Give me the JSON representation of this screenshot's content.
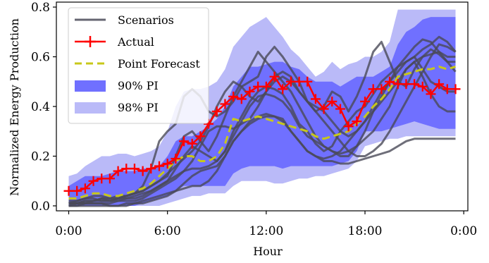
{
  "chart_data": {
    "type": "line",
    "xlabel": "Hour",
    "ylabel": "Normalized Energy Production",
    "x_tick_labels": [
      "0:00",
      "6:00",
      "12:00",
      "18:00",
      "0:00"
    ],
    "y_tick_labels": [
      "0.0",
      "0.2",
      "0.4",
      "0.6",
      "0.8"
    ],
    "xlim": [
      -0.75,
      24.25
    ],
    "ylim": [
      -0.02,
      0.82
    ],
    "y_ticks": [
      0.0,
      0.2,
      0.4,
      0.6,
      0.8
    ],
    "x_ticks": [
      0,
      6,
      12,
      18,
      24
    ],
    "grid": false,
    "legend_position": "upper-left",
    "x": [
      0,
      0.5,
      1,
      1.5,
      2,
      2.5,
      3,
      3.5,
      4,
      4.5,
      5,
      5.5,
      6,
      6.5,
      7,
      7.5,
      8,
      8.5,
      9,
      9.5,
      10,
      10.5,
      11,
      11.5,
      12,
      12.5,
      13,
      13.5,
      14,
      14.5,
      15,
      15.5,
      16,
      16.5,
      17,
      17.5,
      18,
      18.5,
      19,
      19.5,
      20,
      20.5,
      21,
      21.5,
      22,
      22.5,
      23,
      23.5
    ],
    "series": [
      {
        "name": "Actual",
        "color": "#ff0000",
        "values": [
          0.06,
          0.06,
          0.07,
          0.1,
          0.11,
          0.11,
          0.14,
          0.15,
          0.15,
          0.14,
          0.15,
          0.16,
          0.17,
          0.19,
          0.26,
          0.25,
          0.28,
          0.33,
          0.38,
          0.41,
          0.44,
          0.43,
          0.46,
          0.48,
          0.48,
          0.52,
          0.47,
          0.5,
          0.5,
          0.5,
          0.43,
          0.39,
          0.42,
          0.39,
          0.32,
          0.34,
          0.42,
          0.47,
          0.47,
          0.5,
          0.49,
          0.49,
          0.49,
          0.48,
          0.45,
          0.49,
          0.47,
          0.47
        ]
      },
      {
        "name": "Point Forecast",
        "color": "#c8c81a",
        "values": [
          0.03,
          0.03,
          0.04,
          0.05,
          0.05,
          0.04,
          0.04,
          0.05,
          0.06,
          0.07,
          0.09,
          0.12,
          0.15,
          0.18,
          0.2,
          0.2,
          0.18,
          0.18,
          0.2,
          0.25,
          0.35,
          0.34,
          0.35,
          0.36,
          0.35,
          0.34,
          0.33,
          0.32,
          0.31,
          0.3,
          0.28,
          0.27,
          0.28,
          0.29,
          0.3,
          0.33,
          0.36,
          0.4,
          0.43,
          0.47,
          0.52,
          0.53,
          0.54,
          0.55,
          0.55,
          0.56,
          0.55,
          0.56
        ]
      },
      {
        "name": "90% PI",
        "color": "#7070ff",
        "upper": [
          0.08,
          0.1,
          0.12,
          0.12,
          0.12,
          0.13,
          0.14,
          0.14,
          0.14,
          0.15,
          0.15,
          0.16,
          0.2,
          0.26,
          0.28,
          0.28,
          0.3,
          0.32,
          0.35,
          0.4,
          0.48,
          0.52,
          0.56,
          0.56,
          0.57,
          0.58,
          0.58,
          0.56,
          0.55,
          0.52,
          0.5,
          0.5,
          0.5,
          0.48,
          0.5,
          0.52,
          0.52,
          0.52,
          0.54,
          0.56,
          0.65,
          0.7,
          0.72,
          0.75,
          0.76,
          0.76,
          0.76,
          0.76
        ],
        "lower": [
          0.0,
          0.0,
          0.0,
          0.0,
          0.0,
          0.0,
          0.0,
          0.0,
          0.0,
          0.01,
          0.02,
          0.03,
          0.04,
          0.06,
          0.08,
          0.08,
          0.08,
          0.08,
          0.08,
          0.08,
          0.13,
          0.15,
          0.16,
          0.16,
          0.16,
          0.16,
          0.15,
          0.16,
          0.16,
          0.16,
          0.16,
          0.16,
          0.16,
          0.17,
          0.18,
          0.22,
          0.3,
          0.3,
          0.3,
          0.31,
          0.32,
          0.33,
          0.34,
          0.33,
          0.32,
          0.31,
          0.31,
          0.31
        ]
      },
      {
        "name": "98% PI",
        "color": "#babaf8",
        "upper": [
          0.12,
          0.13,
          0.16,
          0.18,
          0.2,
          0.2,
          0.21,
          0.21,
          0.2,
          0.21,
          0.22,
          0.24,
          0.3,
          0.4,
          0.46,
          0.47,
          0.47,
          0.48,
          0.5,
          0.55,
          0.64,
          0.68,
          0.72,
          0.74,
          0.76,
          0.72,
          0.68,
          0.63,
          0.6,
          0.56,
          0.52,
          0.54,
          0.58,
          0.55,
          0.57,
          0.58,
          0.6,
          0.6,
          0.62,
          0.66,
          0.79,
          0.79,
          0.79,
          0.79,
          0.79,
          0.79,
          0.79,
          0.79
        ],
        "lower": [
          0.0,
          0.0,
          0.0,
          0.0,
          0.0,
          0.0,
          0.0,
          0.0,
          0.0,
          0.0,
          0.0,
          0.0,
          0.01,
          0.02,
          0.03,
          0.04,
          0.04,
          0.05,
          0.05,
          0.05,
          0.08,
          0.1,
          0.1,
          0.1,
          0.1,
          0.09,
          0.09,
          0.1,
          0.11,
          0.11,
          0.12,
          0.12,
          0.13,
          0.14,
          0.15,
          0.18,
          0.24,
          0.25,
          0.26,
          0.27,
          0.27,
          0.28,
          0.28,
          0.28,
          0.28,
          0.28,
          0.28,
          0.28
        ]
      },
      {
        "name": "Scenarios",
        "color": "#4a4a58",
        "values": [
          [
            0.01,
            0.02,
            0.03,
            0.03,
            0.02,
            0.02,
            0.03,
            0.03,
            0.03,
            0.04,
            0.06,
            0.08,
            0.1,
            0.15,
            0.2,
            0.24,
            0.22,
            0.2,
            0.18,
            0.22,
            0.3,
            0.36,
            0.42,
            0.46,
            0.48,
            0.47,
            0.45,
            0.4,
            0.33,
            0.3,
            0.25,
            0.22,
            0.24,
            0.3,
            0.34,
            0.38,
            0.4,
            0.45,
            0.5,
            0.53,
            0.56,
            0.58,
            0.6,
            0.63,
            0.65,
            0.68,
            0.66,
            0.62
          ],
          [
            0.0,
            0.01,
            0.01,
            0.01,
            0.01,
            0.0,
            0.0,
            0.01,
            0.01,
            0.01,
            0.02,
            0.03,
            0.04,
            0.06,
            0.09,
            0.12,
            0.14,
            0.15,
            0.16,
            0.2,
            0.26,
            0.3,
            0.34,
            0.36,
            0.37,
            0.36,
            0.35,
            0.3,
            0.26,
            0.22,
            0.2,
            0.19,
            0.2,
            0.22,
            0.26,
            0.3,
            0.34,
            0.38,
            0.42,
            0.46,
            0.5,
            0.55,
            0.58,
            0.6,
            0.61,
            0.62,
            0.6,
            0.6
          ],
          [
            0.01,
            0.01,
            0.02,
            0.02,
            0.03,
            0.03,
            0.04,
            0.04,
            0.05,
            0.08,
            0.15,
            0.26,
            0.3,
            0.33,
            0.44,
            0.47,
            0.44,
            0.38,
            0.36,
            0.38,
            0.42,
            0.48,
            0.5,
            0.52,
            0.6,
            0.64,
            0.6,
            0.55,
            0.5,
            0.42,
            0.38,
            0.4,
            0.46,
            0.44,
            0.38,
            0.44,
            0.52,
            0.62,
            0.66,
            0.58,
            0.5,
            0.48,
            0.55,
            0.6,
            0.63,
            0.61,
            0.58,
            0.58
          ],
          [
            0.01,
            0.01,
            0.01,
            0.02,
            0.03,
            0.02,
            0.02,
            0.03,
            0.04,
            0.05,
            0.06,
            0.08,
            0.1,
            0.12,
            0.14,
            0.15,
            0.15,
            0.16,
            0.18,
            0.22,
            0.28,
            0.34,
            0.4,
            0.44,
            0.45,
            0.44,
            0.42,
            0.38,
            0.32,
            0.28,
            0.26,
            0.24,
            0.22,
            0.21,
            0.22,
            0.24,
            0.27,
            0.3,
            0.35,
            0.4,
            0.48,
            0.55,
            0.58,
            0.52,
            0.45,
            0.4,
            0.38,
            0.38
          ],
          [
            0.0,
            0.0,
            0.01,
            0.01,
            0.01,
            0.01,
            0.02,
            0.02,
            0.02,
            0.03,
            0.05,
            0.07,
            0.09,
            0.11,
            0.14,
            0.18,
            0.24,
            0.3,
            0.32,
            0.32,
            0.31,
            0.33,
            0.35,
            0.4,
            0.46,
            0.52,
            0.54,
            0.52,
            0.46,
            0.42,
            0.38,
            0.34,
            0.3,
            0.26,
            0.22,
            0.2,
            0.2,
            0.22,
            0.25,
            0.3,
            0.36,
            0.42,
            0.48,
            0.54,
            0.6,
            0.65,
            0.64,
            0.62
          ],
          [
            0.01,
            0.01,
            0.02,
            0.02,
            0.02,
            0.02,
            0.03,
            0.04,
            0.05,
            0.06,
            0.08,
            0.1,
            0.13,
            0.16,
            0.19,
            0.22,
            0.26,
            0.32,
            0.4,
            0.46,
            0.5,
            0.48,
            0.44,
            0.42,
            0.46,
            0.5,
            0.52,
            0.5,
            0.46,
            0.42,
            0.4,
            0.38,
            0.34,
            0.3,
            0.28,
            0.3,
            0.34,
            0.4,
            0.46,
            0.5,
            0.54,
            0.58,
            0.6,
            0.55,
            0.5,
            0.48,
            0.46,
            0.46
          ],
          [
            0.0,
            0.0,
            0.0,
            0.0,
            0.0,
            0.0,
            0.0,
            0.0,
            0.01,
            0.02,
            0.03,
            0.04,
            0.05,
            0.06,
            0.07,
            0.08,
            0.08,
            0.1,
            0.14,
            0.2,
            0.26,
            0.3,
            0.33,
            0.35,
            0.36,
            0.36,
            0.34,
            0.3,
            0.26,
            0.22,
            0.2,
            0.18,
            0.18,
            0.17,
            0.17,
            0.18,
            0.19,
            0.2,
            0.21,
            0.22,
            0.24,
            0.26,
            0.27,
            0.27,
            0.27,
            0.27,
            0.27,
            0.27
          ],
          [
            0.02,
            0.02,
            0.03,
            0.04,
            0.04,
            0.03,
            0.03,
            0.04,
            0.05,
            0.06,
            0.08,
            0.1,
            0.12,
            0.2,
            0.28,
            0.3,
            0.26,
            0.22,
            0.28,
            0.36,
            0.44,
            0.5,
            0.56,
            0.62,
            0.58,
            0.54,
            0.5,
            0.46,
            0.4,
            0.34,
            0.28,
            0.24,
            0.22,
            0.2,
            0.2,
            0.24,
            0.3,
            0.38,
            0.44,
            0.5,
            0.56,
            0.6,
            0.64,
            0.67,
            0.66,
            0.62,
            0.58,
            0.54
          ]
        ]
      }
    ]
  },
  "legend": {
    "items": [
      {
        "label": "Scenarios",
        "kind": "line",
        "color": "#4a4a58"
      },
      {
        "label": "Actual",
        "kind": "marker-line",
        "color": "#ff0000"
      },
      {
        "label": "Point Forecast",
        "kind": "dashed",
        "color": "#c8c81a"
      },
      {
        "label": "90% PI",
        "kind": "patch",
        "color": "#7070ff"
      },
      {
        "label": "98% PI",
        "kind": "patch",
        "color": "#babaf8"
      }
    ]
  }
}
